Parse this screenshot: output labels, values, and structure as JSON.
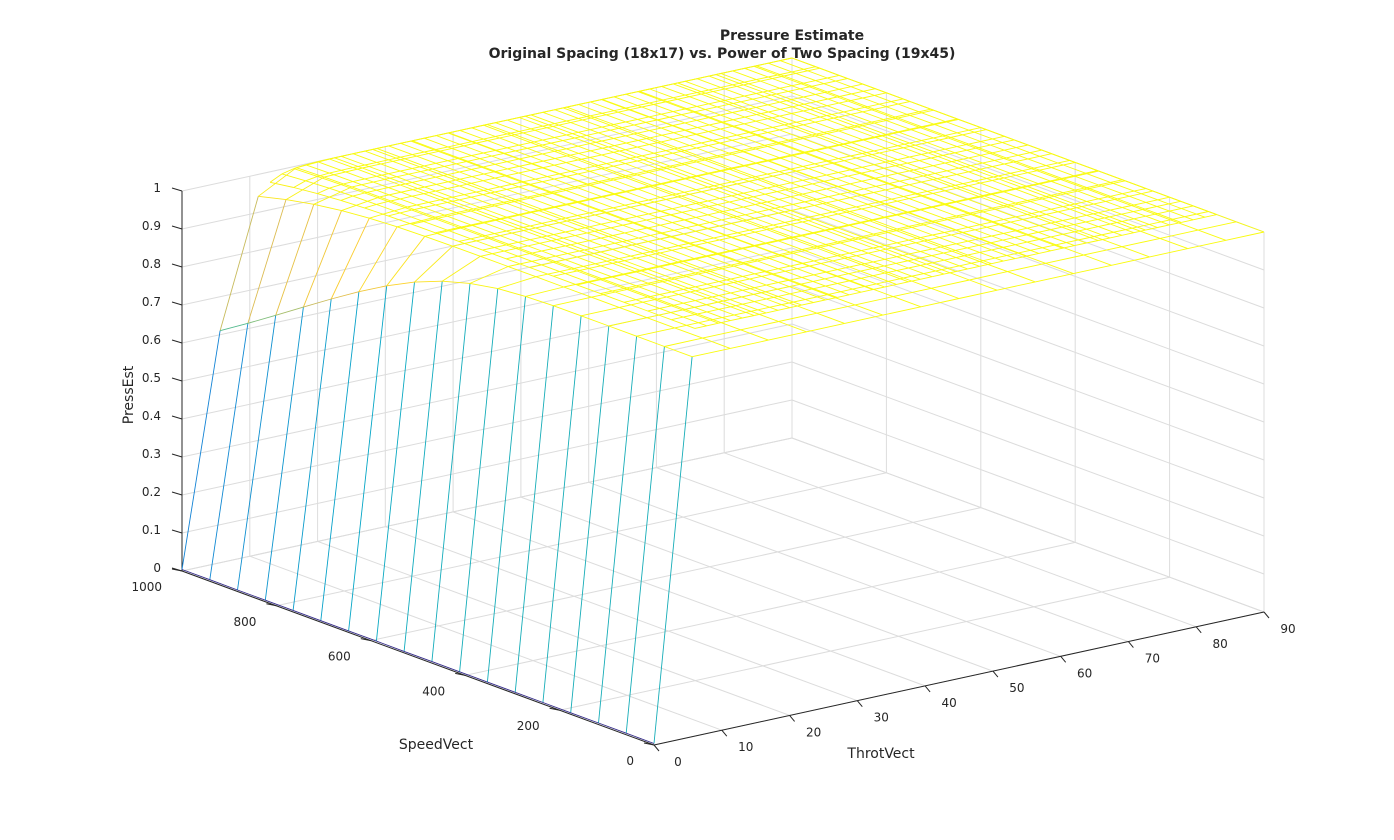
{
  "chart_data": {
    "type": "surface-mesh",
    "title": "Pressure Estimate",
    "subtitle": "Original Spacing (18x17) vs. Power of Two Spacing (19x45)",
    "xlabel": "ThrotVect",
    "ylabel": "SpeedVect",
    "zlabel": "PressEst",
    "xlim": [
      0,
      90
    ],
    "ylim": [
      0,
      1000
    ],
    "zlim": [
      0,
      1
    ],
    "xticks": [
      "0",
      "10",
      "20",
      "30",
      "40",
      "50",
      "60",
      "70",
      "80",
      "90"
    ],
    "yticks": [
      "0",
      "200",
      "400",
      "600",
      "800",
      "1000"
    ],
    "zticks": [
      "0",
      "0.1",
      "0.2",
      "0.3",
      "0.4",
      "0.5",
      "0.6",
      "0.7",
      "0.8",
      "0.9",
      "1"
    ],
    "grid": true,
    "colormap": "parula",
    "series": [
      {
        "grid_size": "18x17",
        "throttle_range": [
          0,
          90
        ],
        "speed_range": [
          0,
          1000
        ]
      },
      {
        "grid_size": "19x45",
        "throttle_range": [
          13,
          90
        ],
        "speed_range": [
          100,
          1000
        ]
      }
    ]
  }
}
